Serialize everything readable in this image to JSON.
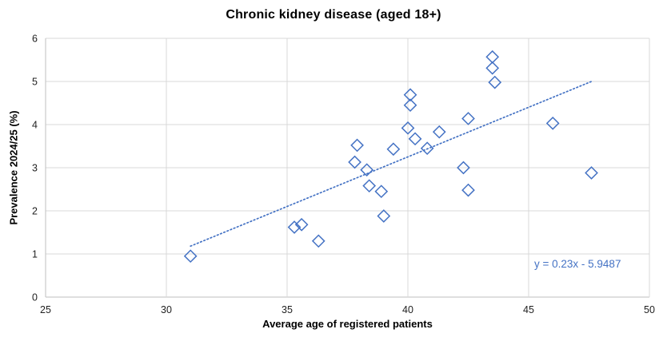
{
  "chart_data": {
    "type": "scatter",
    "title": "Chronic kidney disease (aged 18+)",
    "xlabel": "Average age of registered patients",
    "ylabel": "Prevalence 2024/25 (%)",
    "xlim": [
      25,
      50
    ],
    "ylim": [
      0,
      6
    ],
    "xticks": [
      25,
      30,
      35,
      40,
      45,
      50
    ],
    "yticks": [
      0,
      1,
      2,
      3,
      4,
      5,
      6
    ],
    "grid": true,
    "legend": "none",
    "marker": "open-diamond",
    "points": [
      [
        31.0,
        0.95
      ],
      [
        35.3,
        1.62
      ],
      [
        35.6,
        1.68
      ],
      [
        36.3,
        1.3
      ],
      [
        37.8,
        3.13
      ],
      [
        37.9,
        3.52
      ],
      [
        38.3,
        2.95
      ],
      [
        38.4,
        2.58
      ],
      [
        38.9,
        2.45
      ],
      [
        39.0,
        1.88
      ],
      [
        39.4,
        3.43
      ],
      [
        40.0,
        3.92
      ],
      [
        40.1,
        4.45
      ],
      [
        40.1,
        4.69
      ],
      [
        40.3,
        3.67
      ],
      [
        40.8,
        3.45
      ],
      [
        41.3,
        3.83
      ],
      [
        42.3,
        3.0
      ],
      [
        42.5,
        2.48
      ],
      [
        42.5,
        4.14
      ],
      [
        43.5,
        5.31
      ],
      [
        43.5,
        5.57
      ],
      [
        43.6,
        4.98
      ],
      [
        46.0,
        4.03
      ],
      [
        47.6,
        2.88
      ]
    ],
    "trendline": {
      "type": "linear-dotted",
      "slope": 0.23,
      "intercept": -5.9487,
      "x_start": 31.0,
      "x_end": 47.6,
      "equation_label": "y = 0.23x - 5.9487"
    },
    "colors": {
      "marker": "#4472C4",
      "trendline": "#4472C4",
      "equation_text": "#4472C4",
      "gridline": "#D9D9D9",
      "axis_line": "#BFBFBF",
      "title_text": "#000000"
    }
  }
}
